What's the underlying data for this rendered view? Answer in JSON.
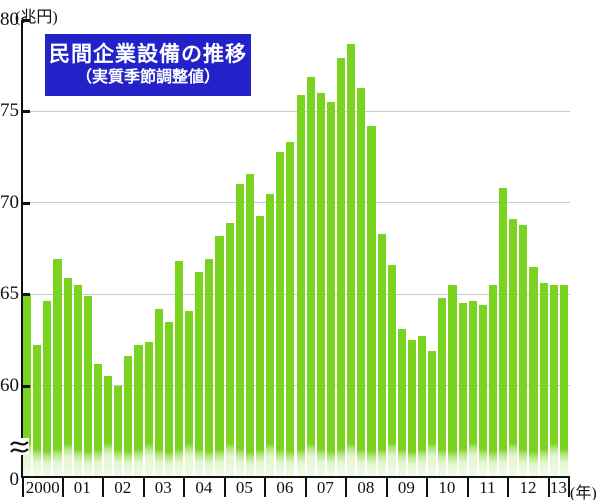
{
  "title": {
    "line1": "民間企業設備の推移",
    "line2": "（実質季節調整値）"
  },
  "y_axis": {
    "unit_label": "(兆円)",
    "tick_labels": [
      "80",
      "75",
      "70",
      "65",
      "60",
      "0"
    ],
    "break_symbol": "≈"
  },
  "x_axis": {
    "unit_label": "(年)",
    "year_labels": [
      "2000",
      "01",
      "02",
      "03",
      "04",
      "05",
      "06",
      "07",
      "08",
      "09",
      "10",
      "11",
      "12",
      "13"
    ]
  },
  "colors": {
    "bar": "#7ad41f",
    "title_bg": "#2222c8",
    "title_text": "#ffffff",
    "grid": "#cbcbcb",
    "axis": "#111111"
  },
  "chart_data": {
    "type": "bar",
    "title": "民間企業設備の推移（実質季節調整値）",
    "ylabel": "兆円",
    "xlabel": "年",
    "ylim": [
      60,
      80
    ],
    "axis_break_above_zero": true,
    "gridlines": [
      60,
      65,
      70,
      75
    ],
    "legend": null,
    "series_name": "民間企業設備（実質季節調整値）",
    "values_by_year": [
      {
        "year": "2000",
        "quarters": [
          65.0,
          62.2,
          64.6,
          66.9
        ]
      },
      {
        "year": "01",
        "quarters": [
          65.9,
          65.5,
          64.9,
          61.2
        ]
      },
      {
        "year": "02",
        "quarters": [
          60.5,
          60.0,
          61.6,
          62.2
        ]
      },
      {
        "year": "03",
        "quarters": [
          62.4,
          64.2,
          63.5,
          66.8
        ]
      },
      {
        "year": "04",
        "quarters": [
          64.1,
          66.2,
          66.9,
          68.2
        ]
      },
      {
        "year": "05",
        "quarters": [
          68.9,
          71.0,
          71.6,
          69.3
        ]
      },
      {
        "year": "06",
        "quarters": [
          70.5,
          72.8,
          73.3,
          75.9
        ]
      },
      {
        "year": "07",
        "quarters": [
          76.9,
          76.0,
          75.5,
          77.9
        ]
      },
      {
        "year": "08",
        "quarters": [
          78.7,
          76.3,
          74.2,
          68.3
        ]
      },
      {
        "year": "09",
        "quarters": [
          66.6,
          63.1,
          62.5,
          62.7
        ]
      },
      {
        "year": "10",
        "quarters": [
          61.9,
          64.8,
          65.5,
          64.5
        ]
      },
      {
        "year": "11",
        "quarters": [
          64.6,
          64.4,
          65.5,
          70.8
        ]
      },
      {
        "year": "12",
        "quarters": [
          69.1,
          68.8,
          66.5,
          65.6
        ]
      },
      {
        "year": "13",
        "quarters": [
          65.5,
          65.5
        ]
      }
    ]
  }
}
